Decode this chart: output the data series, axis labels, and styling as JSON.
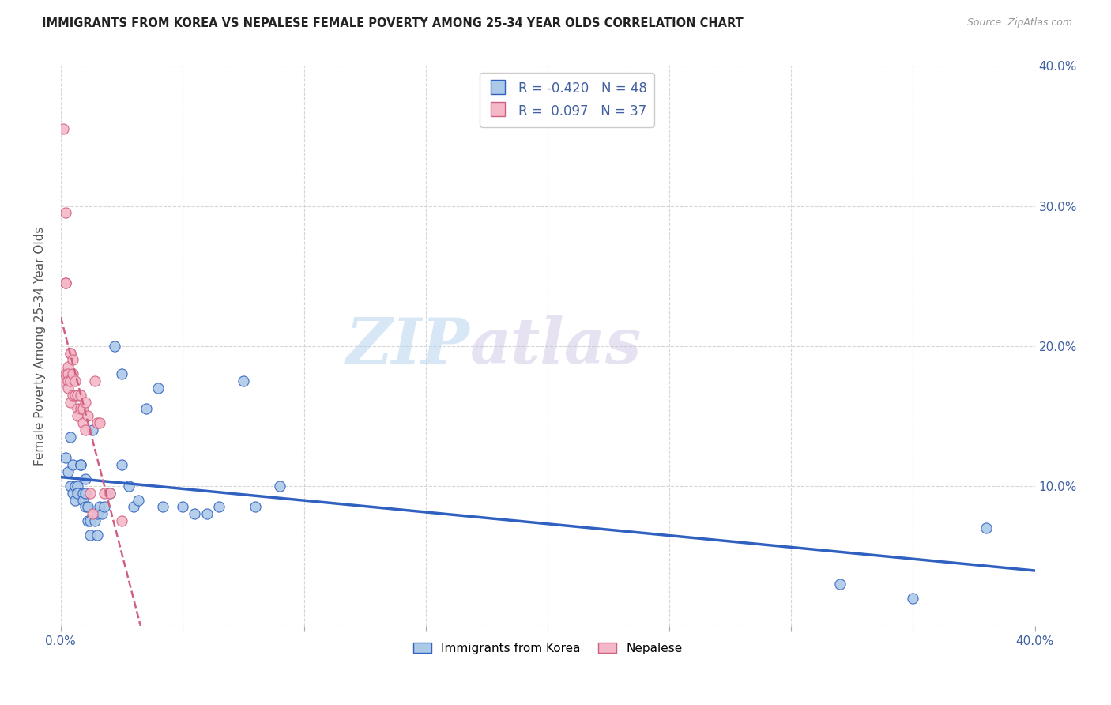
{
  "title": "IMMIGRANTS FROM KOREA VS NEPALESE FEMALE POVERTY AMONG 25-34 YEAR OLDS CORRELATION CHART",
  "source": "Source: ZipAtlas.com",
  "ylabel": "Female Poverty Among 25-34 Year Olds",
  "x_min": 0.0,
  "x_max": 0.4,
  "y_min": 0.0,
  "y_max": 0.4,
  "x_ticks": [
    0.0,
    0.05,
    0.1,
    0.15,
    0.2,
    0.25,
    0.3,
    0.35,
    0.4
  ],
  "y_ticks": [
    0.0,
    0.1,
    0.2,
    0.3,
    0.4
  ],
  "korea_R": -0.42,
  "korea_N": 48,
  "nepal_R": 0.097,
  "nepal_N": 37,
  "korea_color": "#adc9e8",
  "nepal_color": "#f5b8c8",
  "korea_line_color": "#3060c0",
  "nepal_line_color": "#d06080",
  "watermark_zip": "ZIP",
  "watermark_atlas": "atlas",
  "legend_labels": [
    "Immigrants from Korea",
    "Nepalese"
  ],
  "korea_x": [
    0.002,
    0.003,
    0.004,
    0.004,
    0.005,
    0.005,
    0.006,
    0.006,
    0.007,
    0.007,
    0.008,
    0.008,
    0.009,
    0.009,
    0.01,
    0.01,
    0.01,
    0.011,
    0.011,
    0.012,
    0.012,
    0.013,
    0.014,
    0.015,
    0.015,
    0.016,
    0.017,
    0.018,
    0.02,
    0.022,
    0.025,
    0.025,
    0.028,
    0.03,
    0.032,
    0.035,
    0.04,
    0.042,
    0.05,
    0.055,
    0.06,
    0.065,
    0.075,
    0.08,
    0.09,
    0.32,
    0.35,
    0.38
  ],
  "korea_y": [
    0.12,
    0.11,
    0.135,
    0.1,
    0.115,
    0.095,
    0.1,
    0.09,
    0.1,
    0.095,
    0.115,
    0.115,
    0.095,
    0.09,
    0.105,
    0.095,
    0.085,
    0.075,
    0.085,
    0.075,
    0.065,
    0.14,
    0.075,
    0.08,
    0.065,
    0.085,
    0.08,
    0.085,
    0.095,
    0.2,
    0.18,
    0.115,
    0.1,
    0.085,
    0.09,
    0.155,
    0.17,
    0.085,
    0.085,
    0.08,
    0.08,
    0.085,
    0.175,
    0.085,
    0.1,
    0.03,
    0.02,
    0.07
  ],
  "nepal_x": [
    0.001,
    0.001,
    0.002,
    0.002,
    0.002,
    0.002,
    0.003,
    0.003,
    0.003,
    0.003,
    0.004,
    0.004,
    0.004,
    0.004,
    0.005,
    0.005,
    0.005,
    0.006,
    0.006,
    0.007,
    0.007,
    0.007,
    0.008,
    0.008,
    0.009,
    0.009,
    0.01,
    0.01,
    0.011,
    0.012,
    0.013,
    0.014,
    0.015,
    0.016,
    0.018,
    0.02,
    0.025
  ],
  "nepal_y": [
    0.355,
    0.175,
    0.295,
    0.245,
    0.245,
    0.18,
    0.185,
    0.18,
    0.175,
    0.17,
    0.195,
    0.195,
    0.175,
    0.16,
    0.19,
    0.18,
    0.165,
    0.175,
    0.165,
    0.165,
    0.155,
    0.15,
    0.165,
    0.155,
    0.155,
    0.145,
    0.16,
    0.14,
    0.15,
    0.095,
    0.08,
    0.175,
    0.145,
    0.145,
    0.095,
    0.095,
    0.075
  ]
}
